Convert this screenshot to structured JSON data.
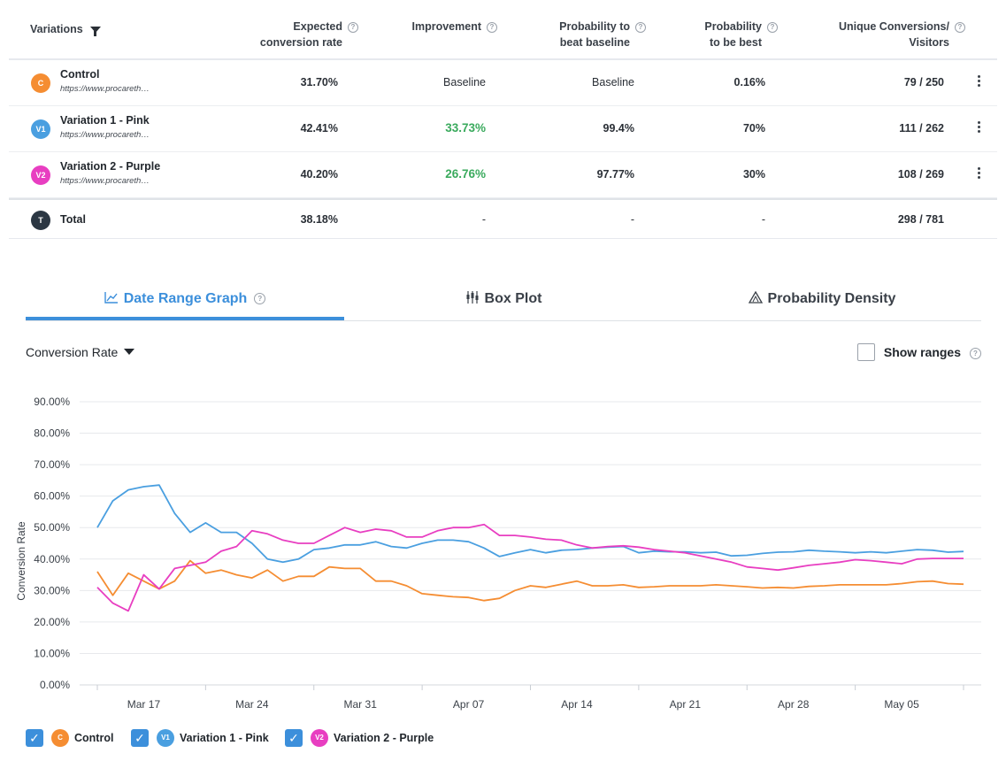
{
  "colors": {
    "control": "#f58d32",
    "variation1": "#4a9fe0",
    "variation2": "#e83ec1",
    "total": "#2c3743",
    "accent": "#3c8fdb",
    "green": "#3aaa5d"
  },
  "table": {
    "headers": {
      "variations": "Variations",
      "expected": "Expected\nconversion rate",
      "improvement": "Improvement",
      "prob_beat": "Probability to\nbeat baseline",
      "prob_best": "Probability\nto be best",
      "unique": "Unique Conversions/\nVisitors"
    },
    "rows": [
      {
        "badge": "C",
        "name": "Control",
        "url": "https://www.procareth…",
        "expected": "31.70%",
        "improvement": "Baseline",
        "prob_beat": "Baseline",
        "prob_best": "0.16%",
        "unique": "79 / 250"
      },
      {
        "badge": "V1",
        "name": "Variation 1 - Pink",
        "url": "https://www.procareth…",
        "expected": "42.41%",
        "improvement": "33.73%",
        "prob_beat": "99.4%",
        "prob_best": "70%",
        "unique": "111 / 262"
      },
      {
        "badge": "V2",
        "name": "Variation 2 - Purple",
        "url": "https://www.procareth…",
        "expected": "40.20%",
        "improvement": "26.76%",
        "prob_beat": "97.77%",
        "prob_best": "30%",
        "unique": "108 / 269"
      }
    ],
    "total": {
      "badge": "T",
      "name": "Total",
      "expected": "38.18%",
      "improvement": "-",
      "prob_beat": "-",
      "prob_best": "-",
      "unique": "298 / 781"
    }
  },
  "tabs": [
    {
      "icon": "📈",
      "label": "Date Range Graph"
    },
    {
      "icon": "⧗",
      "label": "Box Plot"
    },
    {
      "icon": "⚠",
      "label": "Probability Density"
    }
  ],
  "metric_selector": "Conversion Rate",
  "show_ranges": "Show ranges",
  "legend": [
    {
      "badge": "C",
      "label": "Control"
    },
    {
      "badge": "V1",
      "label": "Variation 1 - Pink"
    },
    {
      "badge": "V2",
      "label": "Variation 2 - Purple"
    }
  ],
  "chart_data": {
    "type": "line",
    "title": "",
    "xlabel": "",
    "ylabel": "Conversion Rate",
    "ylim": [
      0,
      90
    ],
    "y_ticks": [
      "0.00%",
      "10.00%",
      "20.00%",
      "30.00%",
      "40.00%",
      "50.00%",
      "60.00%",
      "70.00%",
      "80.00%",
      "90.00%"
    ],
    "x_ticks": [
      "Mar 17",
      "Mar 24",
      "Mar 31",
      "Apr 07",
      "Apr 14",
      "Apr 21",
      "Apr 28",
      "May 05"
    ],
    "x_tick_index": [
      3,
      10,
      17,
      24,
      31,
      38,
      45,
      52
    ],
    "x_count": 57,
    "grid": true,
    "series": [
      {
        "name": "Control",
        "color": "#f58d32",
        "values": [
          36,
          28.5,
          35.5,
          33,
          30.5,
          33,
          39.5,
          35.5,
          36.5,
          35,
          34,
          36.5,
          33,
          34.5,
          34.5,
          37.5,
          37,
          37,
          33,
          33,
          31.5,
          29,
          28.5,
          28,
          27.8,
          26.8,
          27.5,
          30,
          31.5,
          31,
          32,
          33,
          31.5,
          31.5,
          31.8,
          31,
          31.2,
          31.5,
          31.5,
          31.5,
          31.8,
          31.5,
          31.2,
          30.8,
          31,
          30.8,
          31.3,
          31.5,
          31.8,
          31.8,
          31.8,
          31.8,
          32.2,
          32.8,
          33,
          32.2,
          32
        ]
      },
      {
        "name": "Variation 1 - Pink",
        "color": "#4a9fe0",
        "values": [
          50,
          58.5,
          62,
          63,
          63.5,
          54.5,
          48.5,
          51.5,
          48.5,
          48.5,
          45,
          40,
          39,
          40,
          43,
          43.5,
          44.5,
          44.5,
          45.5,
          44,
          43.5,
          45,
          46,
          46,
          45.5,
          43.5,
          40.8,
          42,
          43,
          42,
          42.8,
          43,
          43.5,
          43.8,
          44,
          42,
          42.5,
          42.3,
          42.3,
          42,
          42.2,
          41,
          41.2,
          41.8,
          42.2,
          42.3,
          42.8,
          42.5,
          42.3,
          42,
          42.3,
          42,
          42.5,
          43,
          42.8,
          42.2,
          42.4
        ]
      },
      {
        "name": "Variation 2 - Purple",
        "color": "#e83ec1",
        "values": [
          31,
          26,
          23.5,
          35,
          30.5,
          37,
          38,
          39,
          42.5,
          44,
          49,
          48,
          46,
          45,
          45,
          47.5,
          50,
          48.5,
          49.5,
          49,
          47,
          47,
          49,
          50,
          50,
          51,
          47.5,
          47.5,
          47,
          46.3,
          46,
          44.5,
          43.5,
          44,
          44.2,
          43.8,
          43,
          42.5,
          42,
          41,
          40,
          39,
          37.5,
          37,
          36.5,
          37.2,
          38,
          38.5,
          39,
          39.8,
          39.5,
          39,
          38.5,
          40,
          40.2,
          40.2,
          40.2
        ]
      }
    ]
  }
}
